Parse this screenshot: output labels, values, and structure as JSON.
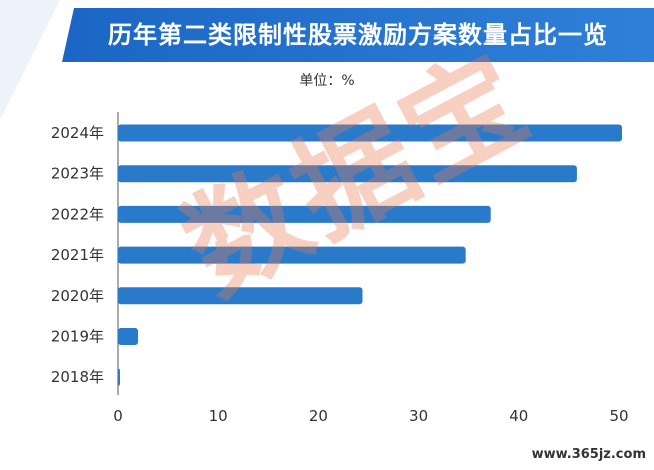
{
  "title": "历年第二类限制性股票激励方案数量占比一览",
  "unit_label": "单位：%",
  "watermark": "数据宝",
  "site": "www.365jz.com",
  "colors": {
    "bar": "#2a7acb",
    "title_bg": "#1f6fce",
    "watermark": "#e87850"
  },
  "chart_data": {
    "type": "bar",
    "orientation": "horizontal",
    "categories": [
      "2024年",
      "2023年",
      "2022年",
      "2021年",
      "2020年",
      "2019年",
      "2018年"
    ],
    "values": [
      50.3,
      45.8,
      37.2,
      34.7,
      24.4,
      2.0,
      0.2
    ],
    "xlim": [
      0,
      50
    ],
    "xticks": [
      0,
      10,
      20,
      30,
      40,
      50
    ],
    "title": "历年第二类限制性股票激励方案数量占比一览",
    "xlabel": "",
    "ylabel": "",
    "grid": false
  }
}
